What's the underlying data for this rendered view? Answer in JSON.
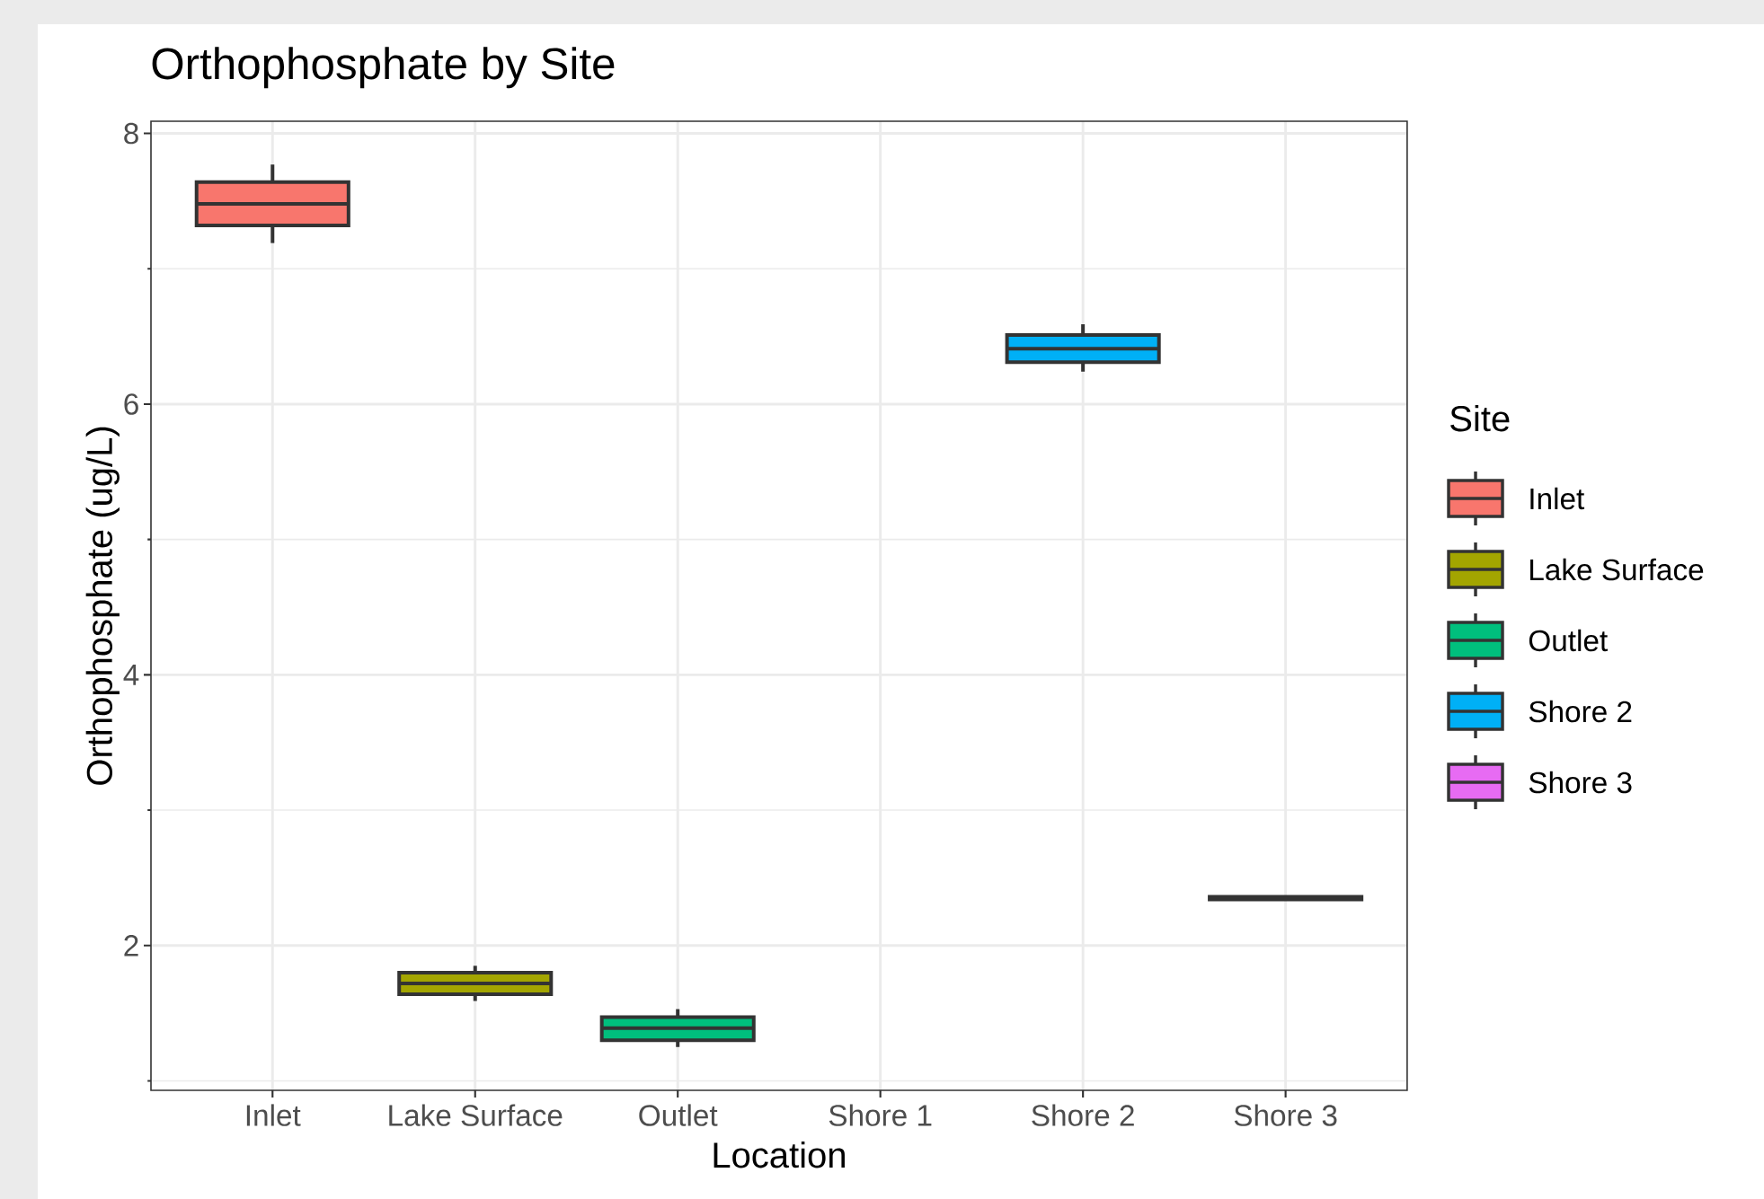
{
  "chart_data": {
    "type": "box",
    "title": "Orthophosphate by Site",
    "xlabel": "Location",
    "ylabel": "Orthophosphate (ug/L)",
    "legend_title": "Site",
    "categories": [
      "Inlet",
      "Lake Surface",
      "Outlet",
      "Shore 1",
      "Shore 2",
      "Shore 3"
    ],
    "series": [
      {
        "name": "Inlet",
        "color": "#f8766d",
        "boxes": [
          {
            "low": 7.19,
            "q1": 7.32,
            "median": 7.48,
            "q3": 7.64,
            "high": 7.77
          },
          null,
          null,
          null,
          null,
          null
        ]
      },
      {
        "name": "Lake Surface",
        "color": "#a3a500",
        "boxes": [
          null,
          {
            "low": 1.59,
            "q1": 1.64,
            "median": 1.72,
            "q3": 1.8,
            "high": 1.85
          },
          null,
          null,
          null,
          null
        ]
      },
      {
        "name": "Outlet",
        "color": "#00bf7d",
        "boxes": [
          null,
          null,
          {
            "low": 1.25,
            "q1": 1.3,
            "median": 1.39,
            "q3": 1.47,
            "high": 1.53
          },
          null,
          null,
          null
        ]
      },
      {
        "name": "Shore 2",
        "color": "#00b0f6",
        "boxes": [
          null,
          null,
          null,
          null,
          {
            "low": 6.24,
            "q1": 6.31,
            "median": 6.41,
            "q3": 6.51,
            "high": 6.59
          },
          null
        ]
      },
      {
        "name": "Shore 3",
        "color": "#e76bf3",
        "boxes": [
          null,
          null,
          null,
          null,
          null,
          {
            "low": 2.33,
            "q1": 2.34,
            "median": 2.35,
            "q3": 2.36,
            "high": 2.37
          }
        ]
      }
    ],
    "ylim": [
      0.93,
      8.09
    ],
    "yticks": [
      2,
      4,
      6,
      8
    ],
    "grid": true,
    "legend": "right"
  }
}
